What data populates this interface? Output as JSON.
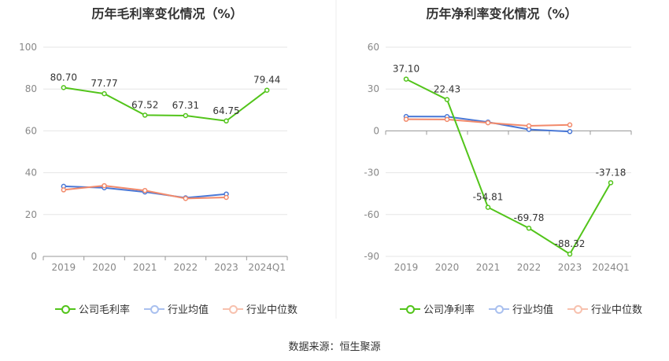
{
  "chart_data": [
    {
      "type": "line",
      "title": "历年毛利率变化情况（%）",
      "categories": [
        "2019",
        "2020",
        "2021",
        "2022",
        "2023",
        "2024Q1"
      ],
      "ylim": [
        0,
        100
      ],
      "yticks": [
        0,
        20,
        40,
        60,
        80,
        100
      ],
      "grid": true,
      "legend_position": "bottom",
      "series": [
        {
          "name": "公司毛利率",
          "color": "#52c41a",
          "values": [
            80.7,
            77.77,
            67.52,
            67.31,
            64.75,
            79.44
          ],
          "labels": [
            "80.70",
            "77.77",
            "67.52",
            "67.31",
            "64.75",
            "79.44"
          ]
        },
        {
          "name": "行业均值",
          "color": "#4a78d6",
          "values": [
            33.5,
            32.8,
            30.8,
            28.0,
            29.8,
            null
          ]
        },
        {
          "name": "行业中位数",
          "color": "#f28a6b",
          "values": [
            31.8,
            33.8,
            31.5,
            27.7,
            28.2,
            null
          ]
        }
      ]
    },
    {
      "type": "line",
      "title": "历年净利率变化情况（%）",
      "categories": [
        "2019",
        "2020",
        "2021",
        "2022",
        "2023",
        "2024Q1"
      ],
      "ylim": [
        -90,
        60
      ],
      "yticks": [
        -90,
        -60,
        -30,
        0,
        30,
        60
      ],
      "grid": true,
      "legend_position": "bottom",
      "series": [
        {
          "name": "公司净利率",
          "color": "#52c41a",
          "values": [
            37.1,
            22.43,
            -54.81,
            -69.78,
            -88.32,
            -37.18
          ],
          "labels": [
            "37.10",
            "22.43",
            "-54.81",
            "-69.78",
            "-88.32",
            "-37.18"
          ]
        },
        {
          "name": "行业均值",
          "color": "#4a78d6",
          "values": [
            10.3,
            10.2,
            6.3,
            1.0,
            -0.5,
            null
          ]
        },
        {
          "name": "行业中位数",
          "color": "#f28a6b",
          "values": [
            8.3,
            8.2,
            5.8,
            3.6,
            4.3,
            null
          ]
        }
      ]
    }
  ],
  "footer": "数据来源：恒生聚源"
}
